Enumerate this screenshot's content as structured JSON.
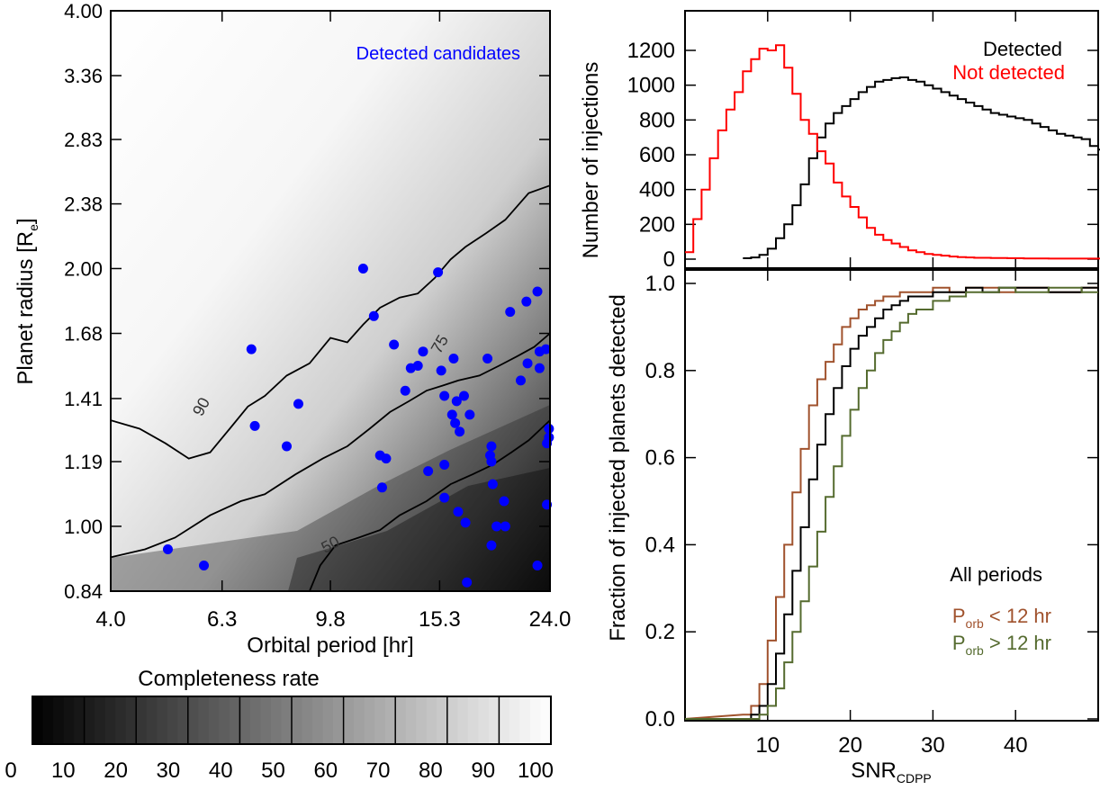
{
  "chart_data": [
    {
      "type": "heatmap",
      "xlabel": "Orbital period [hr]",
      "ylabel_main": "Planet radius [R",
      "ylabel_sub": "e",
      "ylabel_end": "]",
      "x_tick_labels": [
        "4.0",
        "6.3",
        "9.8",
        "15.3",
        "24.0"
      ],
      "y_tick_labels": [
        "0.84",
        "1.00",
        "1.19",
        "1.41",
        "1.68",
        "2.00",
        "2.38",
        "2.83",
        "3.36",
        "4.00"
      ],
      "xlim": [
        4.0,
        24.0
      ],
      "ylim": [
        0.84,
        4.0
      ],
      "scale": "log",
      "contour_labels": [
        "90",
        "75",
        "50"
      ],
      "legend_label": "Detected candidates",
      "candidate_color": "#0000ff",
      "candidates": [
        [
          5.05,
          0.94
        ],
        [
          5.85,
          0.9
        ],
        [
          7.1,
          1.61
        ],
        [
          7.2,
          1.31
        ],
        [
          8.2,
          1.24
        ],
        [
          8.6,
          1.39
        ],
        [
          11.2,
          2.0
        ],
        [
          11.7,
          1.76
        ],
        [
          12.0,
          1.21
        ],
        [
          12.1,
          1.11
        ],
        [
          12.3,
          1.2
        ],
        [
          12.7,
          1.63
        ],
        [
          13.3,
          1.44
        ],
        [
          13.6,
          1.53
        ],
        [
          14.0,
          1.54
        ],
        [
          14.3,
          1.6
        ],
        [
          14.6,
          1.16
        ],
        [
          15.2,
          1.98
        ],
        [
          15.4,
          1.52
        ],
        [
          15.6,
          1.42
        ],
        [
          15.6,
          1.08
        ],
        [
          15.6,
          1.18
        ],
        [
          16.1,
          1.35
        ],
        [
          16.2,
          1.57
        ],
        [
          16.3,
          1.32
        ],
        [
          16.4,
          1.4
        ],
        [
          16.5,
          1.04
        ],
        [
          16.6,
          1.29
        ],
        [
          16.9,
          1.42
        ],
        [
          17.0,
          1.01
        ],
        [
          17.1,
          0.86
        ],
        [
          17.1,
          0.83
        ],
        [
          17.3,
          1.35
        ],
        [
          18.6,
          1.57
        ],
        [
          18.8,
          1.21
        ],
        [
          18.9,
          1.24
        ],
        [
          18.9,
          1.19
        ],
        [
          19.0,
          1.12
        ],
        [
          18.9,
          0.95
        ],
        [
          19.3,
          1.0
        ],
        [
          19.9,
          1.07
        ],
        [
          20.0,
          1.0
        ],
        [
          20.4,
          1.78
        ],
        [
          21.3,
          1.48
        ],
        [
          21.8,
          1.83
        ],
        [
          21.9,
          1.55
        ],
        [
          22.8,
          1.88
        ],
        [
          22.8,
          0.9
        ],
        [
          23.0,
          1.6
        ],
        [
          23.0,
          1.53
        ],
        [
          23.6,
          1.61
        ],
        [
          23.7,
          1.06
        ],
        [
          23.7,
          1.25
        ],
        [
          23.9,
          1.3
        ],
        [
          23.9,
          1.27
        ]
      ]
    },
    {
      "type": "colorbar",
      "title": "Completeness rate",
      "tick_labels": [
        "0",
        "10",
        "20",
        "30",
        "40",
        "50",
        "60",
        "70",
        "80",
        "90",
        "100"
      ],
      "range": [
        0,
        100
      ]
    },
    {
      "type": "line",
      "ylabel": "Number of injections",
      "ylim": [
        0,
        1300
      ],
      "xlim": [
        0,
        50
      ],
      "y_tick_labels": [
        "0",
        "200",
        "400",
        "600",
        "800",
        "1000",
        "1200"
      ],
      "series": [
        {
          "name": "Detected",
          "color": "#000000",
          "x": [
            7,
            8,
            9,
            10,
            11,
            12,
            13,
            14,
            15,
            16,
            17,
            18,
            19,
            20,
            21,
            22,
            23,
            24,
            25,
            26,
            27,
            28,
            29,
            30,
            31,
            32,
            33,
            34,
            35,
            36,
            37,
            38,
            39,
            40,
            41,
            42,
            43,
            44,
            45,
            46,
            47,
            48,
            49,
            50
          ],
          "y": [
            5,
            10,
            25,
            60,
            120,
            200,
            310,
            430,
            580,
            700,
            780,
            840,
            880,
            920,
            960,
            990,
            1020,
            1030,
            1040,
            1045,
            1030,
            1020,
            1000,
            980,
            960,
            940,
            920,
            900,
            880,
            860,
            840,
            830,
            820,
            810,
            800,
            780,
            760,
            740,
            720,
            710,
            700,
            690,
            650,
            630
          ]
        },
        {
          "name": "Not detected",
          "color": "#ff0000",
          "x": [
            0,
            1,
            2,
            3,
            4,
            5,
            6,
            7,
            8,
            9,
            10,
            11,
            12,
            13,
            14,
            15,
            16,
            17,
            18,
            19,
            20,
            21,
            22,
            23,
            24,
            25,
            26,
            27,
            28,
            29,
            30,
            31,
            32,
            33,
            34,
            35,
            36,
            37,
            38,
            39,
            40,
            41,
            42,
            43,
            44,
            45,
            46,
            47,
            48,
            49,
            50
          ],
          "y": [
            40,
            230,
            400,
            580,
            740,
            860,
            960,
            1080,
            1150,
            1210,
            1200,
            1230,
            1100,
            950,
            800,
            720,
            620,
            550,
            440,
            360,
            300,
            240,
            180,
            140,
            110,
            90,
            70,
            50,
            40,
            30,
            25,
            20,
            15,
            12,
            10,
            8,
            8,
            6,
            6,
            5,
            5,
            4,
            4,
            4,
            3,
            3,
            3,
            3,
            3,
            3,
            3
          ]
        }
      ]
    },
    {
      "type": "line",
      "xlabel_main": "SNR",
      "xlabel_sub": "CDPP",
      "ylabel": "Fraction of injected planets detected",
      "xlim": [
        0,
        50
      ],
      "ylim": [
        0,
        1.0
      ],
      "x_tick_labels": [
        "10",
        "20",
        "30",
        "40"
      ],
      "y_tick_labels": [
        "0.0",
        "0.2",
        "0.4",
        "0.6",
        "0.8",
        "1.0"
      ],
      "legend_title": "All periods",
      "series": [
        {
          "name": "P",
          "name_sub": "orb",
          "name_rest": " < 12 hr",
          "color": "#a0522d",
          "x": [
            7,
            8,
            9,
            10,
            11,
            12,
            13,
            14,
            15,
            16,
            17,
            18,
            19,
            20,
            21,
            22,
            23,
            24,
            25,
            26,
            27,
            28,
            30,
            32,
            34,
            36,
            38,
            40,
            44,
            48,
            50
          ],
          "y": [
            0.01,
            0.03,
            0.08,
            0.18,
            0.28,
            0.4,
            0.52,
            0.62,
            0.72,
            0.78,
            0.82,
            0.86,
            0.9,
            0.92,
            0.94,
            0.95,
            0.96,
            0.97,
            0.97,
            0.98,
            0.98,
            0.98,
            0.99,
            0.98,
            0.99,
            0.99,
            0.98,
            0.99,
            0.98,
            0.99,
            0.98
          ]
        },
        {
          "name_full": "All periods",
          "color": "#000000",
          "x": [
            7,
            8,
            9,
            10,
            11,
            12,
            13,
            14,
            15,
            16,
            17,
            18,
            19,
            20,
            21,
            22,
            23,
            24,
            25,
            26,
            27,
            28,
            30,
            32,
            34,
            36,
            38,
            40,
            44,
            48,
            50
          ],
          "y": [
            0.0,
            0.01,
            0.03,
            0.08,
            0.15,
            0.24,
            0.34,
            0.44,
            0.55,
            0.63,
            0.7,
            0.76,
            0.81,
            0.85,
            0.88,
            0.9,
            0.92,
            0.94,
            0.95,
            0.96,
            0.97,
            0.97,
            0.98,
            0.98,
            0.99,
            0.98,
            0.99,
            0.99,
            0.98,
            0.99,
            0.98
          ]
        },
        {
          "name": "P",
          "name_sub": "orb",
          "name_rest": " > 12 hr",
          "color": "#556b2f",
          "x": [
            7,
            8,
            9,
            10,
            11,
            12,
            13,
            14,
            15,
            16,
            17,
            18,
            19,
            20,
            21,
            22,
            23,
            24,
            25,
            26,
            27,
            28,
            30,
            32,
            34,
            36,
            38,
            40,
            44,
            48,
            50
          ],
          "y": [
            0.0,
            0.0,
            0.01,
            0.03,
            0.07,
            0.13,
            0.2,
            0.27,
            0.35,
            0.43,
            0.51,
            0.58,
            0.65,
            0.71,
            0.76,
            0.8,
            0.84,
            0.87,
            0.89,
            0.91,
            0.93,
            0.94,
            0.96,
            0.97,
            0.98,
            0.98,
            0.99,
            0.98,
            0.99,
            0.98,
            0.98
          ]
        }
      ]
    }
  ]
}
